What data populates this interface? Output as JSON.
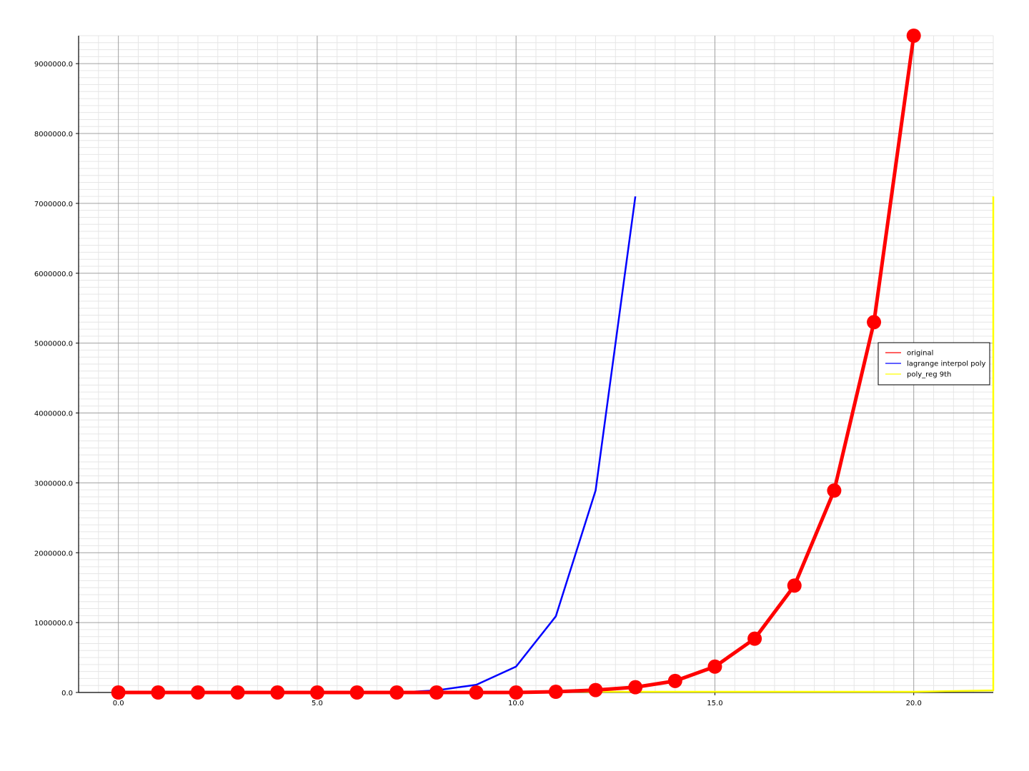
{
  "chart_data": {
    "type": "line",
    "xlim": [
      -1,
      22
    ],
    "ylim": [
      0,
      9400000
    ],
    "grid": true,
    "legend_placement": "center-right",
    "x_ticks": [
      0,
      5,
      10,
      15,
      20
    ],
    "x_tick_labels": [
      "0.0",
      "5.0",
      "10.0",
      "15.0",
      "20.0"
    ],
    "y_ticks": [
      0,
      1000000,
      2000000,
      3000000,
      4000000,
      5000000,
      6000000,
      7000000,
      8000000,
      9000000
    ],
    "y_tick_labels": [
      "0.0",
      "1000000.0",
      "2000000.0",
      "3000000.0",
      "4000000.0",
      "5000000.0",
      "6000000.0",
      "7000000.0",
      "8000000.0",
      "9000000.0"
    ],
    "series": [
      {
        "name": "original",
        "color": "#ff0000",
        "markers": true,
        "points": [
          [
            0,
            0
          ],
          [
            1,
            0
          ],
          [
            2,
            0
          ],
          [
            3,
            0
          ],
          [
            4,
            0
          ],
          [
            5,
            0
          ],
          [
            6,
            0
          ],
          [
            7,
            0
          ],
          [
            8,
            0
          ],
          [
            9,
            0
          ],
          [
            10,
            0
          ],
          [
            11,
            10000
          ],
          [
            12,
            35000
          ],
          [
            13,
            75000
          ],
          [
            14,
            165000
          ],
          [
            15,
            370000
          ],
          [
            16,
            770000
          ],
          [
            17,
            1530000
          ],
          [
            18,
            2890000
          ],
          [
            19,
            5300000
          ],
          [
            20,
            9400000
          ]
        ]
      },
      {
        "name": "lagrange interpol poly",
        "color": "#0000ff",
        "markers": false,
        "points": [
          [
            0,
            0
          ],
          [
            1,
            0
          ],
          [
            2,
            0
          ],
          [
            3,
            0
          ],
          [
            4,
            0
          ],
          [
            5,
            0
          ],
          [
            6,
            0
          ],
          [
            7,
            0
          ],
          [
            8,
            30000
          ],
          [
            9,
            110000
          ],
          [
            10,
            370000
          ],
          [
            11,
            1090000
          ],
          [
            12,
            2890000
          ],
          [
            13,
            7100000
          ]
        ]
      },
      {
        "name": "poly_reg 9th",
        "color": "#ffff00",
        "markers": false,
        "points": [
          [
            0,
            10000
          ],
          [
            5,
            10000
          ],
          [
            10,
            10000
          ],
          [
            15,
            10000
          ],
          [
            20,
            10000
          ],
          [
            22,
            30000
          ],
          [
            22,
            7100000
          ]
        ]
      }
    ]
  }
}
